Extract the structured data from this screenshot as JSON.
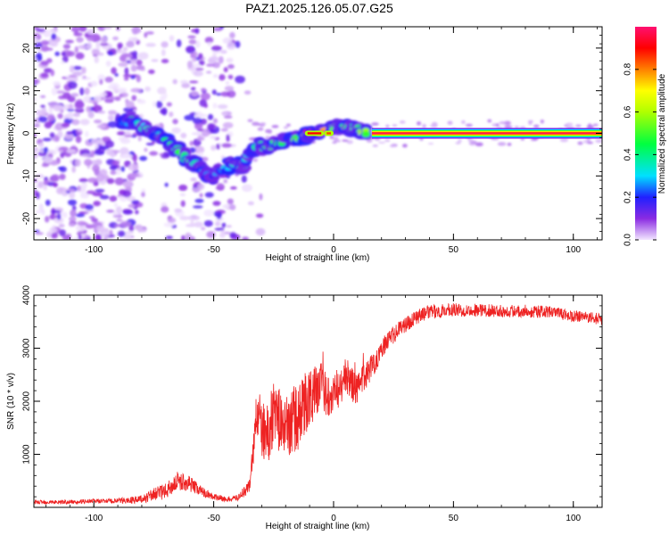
{
  "title": "PAZ1.2025.126.05.07.G25",
  "chart_data": [
    {
      "type": "heatmap",
      "xlabel": "Height of straight line (km)",
      "ylabel": "Frequency (Hz)",
      "xlim": [
        -125,
        112
      ],
      "ylim": [
        -25,
        25
      ],
      "xticks": [
        -100,
        -50,
        0,
        50,
        100
      ],
      "yticks": [
        -20,
        -10,
        0,
        10,
        20
      ],
      "colorbar": {
        "label": "Normalized spectral amplitude",
        "range": [
          0,
          1
        ],
        "ticks": [
          0.0,
          0.2,
          0.4,
          0.6,
          0.8
        ]
      },
      "ridge": [
        {
          "x": -88,
          "f": 2.5,
          "a": 0.25
        },
        {
          "x": -84,
          "f": 2.8,
          "a": 0.45
        },
        {
          "x": -80,
          "f": 2.0,
          "a": 0.35
        },
        {
          "x": -76,
          "f": 0.5,
          "a": 0.45
        },
        {
          "x": -72,
          "f": -1.0,
          "a": 0.4
        },
        {
          "x": -68,
          "f": -2.5,
          "a": 0.5
        },
        {
          "x": -64,
          "f": -4.5,
          "a": 0.45
        },
        {
          "x": -60,
          "f": -6.5,
          "a": 0.45
        },
        {
          "x": -56,
          "f": -7.5,
          "a": 0.35
        },
        {
          "x": -52,
          "f": -10.5,
          "a": 0.2
        },
        {
          "x": -42,
          "f": -7.0,
          "a": 0.35
        },
        {
          "x": -38,
          "f": -8.0,
          "a": 0.4
        },
        {
          "x": -36,
          "f": -5.0,
          "a": 0.35
        },
        {
          "x": -32,
          "f": -3.0,
          "a": 0.45
        },
        {
          "x": -28,
          "f": -3.0,
          "a": 0.5
        },
        {
          "x": -24,
          "f": -2.5,
          "a": 0.45
        },
        {
          "x": -18,
          "f": -1.5,
          "a": 0.55
        },
        {
          "x": -14,
          "f": -1.0,
          "a": 0.5
        },
        {
          "x": -10,
          "f": 0.0,
          "a": 0.9
        },
        {
          "x": -6,
          "f": 0.0,
          "a": 0.95
        },
        {
          "x": 2,
          "f": 1.5,
          "a": 0.55
        },
        {
          "x": 6,
          "f": 1.5,
          "a": 0.6
        },
        {
          "x": 10,
          "f": 1.0,
          "a": 0.55
        },
        {
          "x": 14,
          "f": 0.0,
          "a": 0.6
        }
      ],
      "steady_tone": {
        "x_from": 16,
        "x_to": 112,
        "f": 0.0,
        "a": 0.9
      }
    },
    {
      "type": "line",
      "xlabel": "Height of straight line (km)",
      "ylabel": "SNR (10 * v/v)",
      "xlim": [
        -125,
        112
      ],
      "ylim": [
        0,
        4000
      ],
      "xticks": [
        -100,
        -50,
        0,
        50,
        100
      ],
      "yticks": [
        1000,
        2000,
        3000,
        4000
      ],
      "color": "#ee2222",
      "x": [
        -125,
        -110,
        -100,
        -90,
        -80,
        -75,
        -70,
        -65,
        -60,
        -55,
        -50,
        -45,
        -40,
        -35,
        -32,
        -30,
        -28,
        -25,
        -22,
        -20,
        -17,
        -15,
        -12,
        -10,
        -8,
        -5,
        -3,
        0,
        3,
        5,
        8,
        10,
        12,
        15,
        18,
        20,
        25,
        30,
        35,
        40,
        45,
        50,
        60,
        70,
        80,
        90,
        100,
        105,
        112
      ],
      "y": [
        100,
        100,
        120,
        120,
        150,
        250,
        300,
        500,
        450,
        300,
        200,
        150,
        180,
        400,
        1800,
        1500,
        1300,
        1800,
        1600,
        1400,
        1700,
        1600,
        2000,
        2000,
        2200,
        2300,
        2100,
        2200,
        2250,
        2500,
        2300,
        2200,
        2400,
        2600,
        2800,
        3000,
        3250,
        3450,
        3600,
        3680,
        3700,
        3720,
        3720,
        3700,
        3700,
        3680,
        3600,
        3580,
        3550
      ],
      "noise": [
        40,
        40,
        40,
        50,
        80,
        120,
        150,
        180,
        150,
        100,
        60,
        50,
        60,
        150,
        500,
        550,
        600,
        600,
        600,
        650,
        650,
        650,
        600,
        600,
        500,
        450,
        420,
        400,
        380,
        350,
        320,
        300,
        280,
        250,
        220,
        200,
        170,
        150,
        140,
        130,
        130,
        130,
        120,
        120,
        120,
        120,
        110,
        110,
        110
      ]
    }
  ]
}
